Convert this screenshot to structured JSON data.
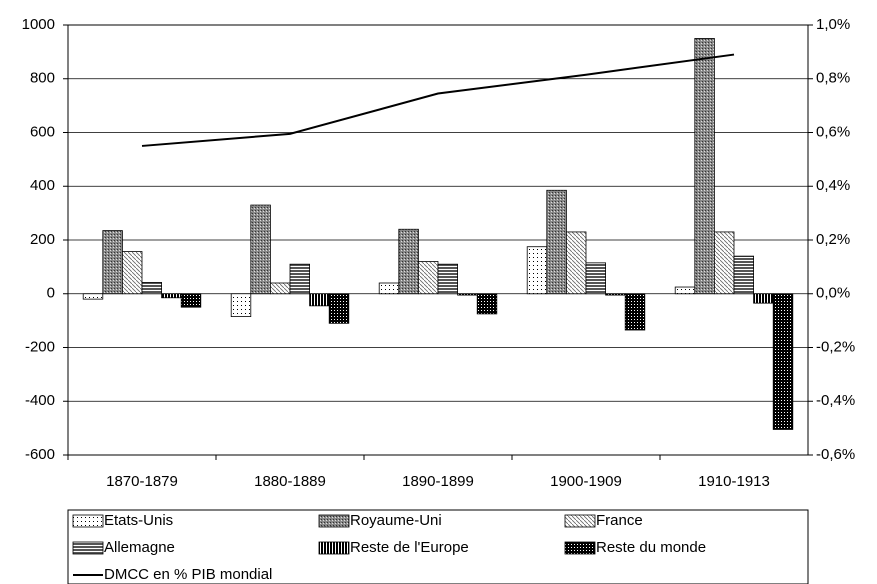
{
  "chart_data": {
    "type": "bar",
    "categories": [
      "1870-1879",
      "1880-1889",
      "1890-1899",
      "1900-1909",
      "1910-1913"
    ],
    "series": [
      {
        "name": "Etats-Unis",
        "values": [
          -20,
          -85,
          40,
          175,
          25
        ]
      },
      {
        "name": "Royaume-Uni",
        "values": [
          235,
          330,
          240,
          385,
          950
        ]
      },
      {
        "name": "France",
        "values": [
          157,
          40,
          120,
          230,
          230
        ]
      },
      {
        "name": "Allemagne",
        "values": [
          42,
          110,
          110,
          115,
          140
        ]
      },
      {
        "name": "Reste de l'Europe",
        "values": [
          -15,
          -45,
          -5,
          -5,
          -35
        ]
      },
      {
        "name": "Reste du monde",
        "values": [
          -50,
          -110,
          -75,
          -135,
          -505
        ]
      },
      {
        "name": "DMCC en % PIB mondial",
        "type": "line",
        "axis": "y2",
        "color": "#000000",
        "values": [
          0.55,
          0.595,
          0.745,
          0.815,
          0.89
        ]
      }
    ],
    "ylim": [
      -600,
      1000
    ],
    "yticks": [
      -600,
      -400,
      -200,
      0,
      200,
      400,
      600,
      800,
      1000
    ],
    "y2lim": [
      -0.6,
      1.0
    ],
    "y2ticks": [
      {
        "value": -0.6,
        "label": "-0,6%"
      },
      {
        "value": -0.4,
        "label": "-0,4%"
      },
      {
        "value": -0.2,
        "label": "-0,2%"
      },
      {
        "value": 0,
        "label": "0,0%"
      },
      {
        "value": 0.2,
        "label": "0,2%"
      },
      {
        "value": 0.4,
        "label": "0,4%"
      },
      {
        "value": 0.6,
        "label": "0,6%"
      },
      {
        "value": 0.8,
        "label": "0,8%"
      },
      {
        "value": 1.0,
        "label": "1,0%"
      }
    ],
    "grid": true
  }
}
